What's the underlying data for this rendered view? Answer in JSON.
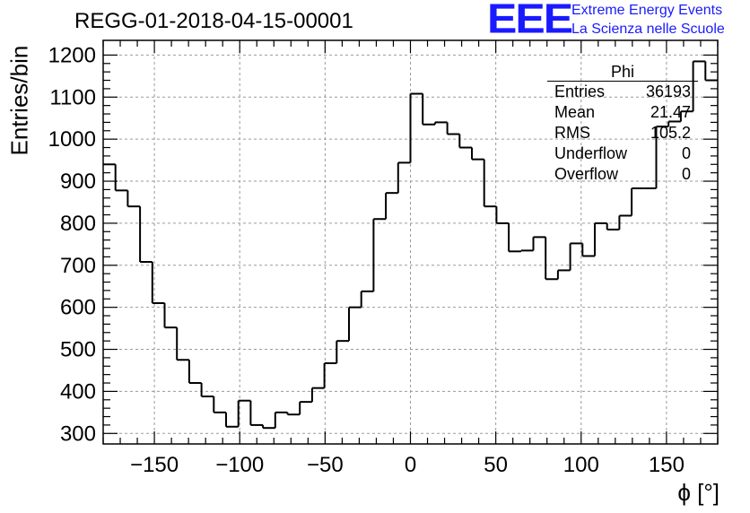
{
  "title": "REGG-01-2018-04-15-00001",
  "logo": {
    "text": "EEE",
    "line1": "Extreme Energy Events",
    "line2": "La Scienza nelle Scuole",
    "color": "#1a1aff"
  },
  "stats": {
    "name": "Phi",
    "rows": [
      {
        "label": "Entries",
        "value": "36193"
      },
      {
        "label": "Mean",
        "value": "21.47"
      },
      {
        "label": "RMS",
        "value": "105.2"
      },
      {
        "label": "Underflow",
        "value": "0"
      },
      {
        "label": "Overflow",
        "value": "0"
      }
    ]
  },
  "chart_data": {
    "type": "bar",
    "histogram": true,
    "xlabel": "ϕ [°]",
    "ylabel": "Entries/bin",
    "xlim": [
      -180,
      180
    ],
    "ylim": [
      275,
      1235
    ],
    "bin_width": 7.2,
    "xticks": [
      -150,
      -100,
      -50,
      0,
      50,
      100,
      150
    ],
    "xtick_labels": [
      "−150",
      "−100",
      "−50",
      "0",
      "50",
      "100",
      "150"
    ],
    "yticks": [
      300,
      400,
      500,
      600,
      700,
      800,
      900,
      1000,
      1100,
      1200
    ],
    "ytick_labels": [
      "300",
      "400",
      "500",
      "600",
      "700",
      "800",
      "900",
      "1000",
      "1100",
      "1200"
    ],
    "grid": true,
    "line_color": "#000000",
    "values": [
      940,
      878,
      840,
      708,
      610,
      552,
      475,
      420,
      388,
      350,
      316,
      378,
      320,
      313,
      350,
      345,
      375,
      408,
      467,
      520,
      600,
      638,
      810,
      872,
      944,
      1108,
      1035,
      1040,
      1012,
      980,
      952,
      840,
      800,
      733,
      735,
      767,
      667,
      688,
      752,
      722,
      800,
      785,
      818,
      883,
      883,
      1030,
      1042,
      1066,
      1185,
      1140
    ]
  }
}
